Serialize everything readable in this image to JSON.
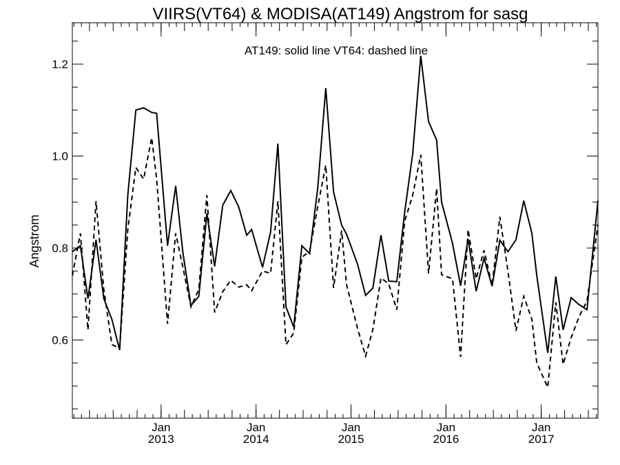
{
  "chart_data": {
    "type": "line",
    "title": "VIIRS(VT64) & MODISA(AT149)  Angstrom for sasg",
    "annotation": "AT149: solid line   VT64: dashed line",
    "ylabel": "Angstrom",
    "xlabel": "",
    "xlim": [
      "2012-01-26",
      "2017-08-07"
    ],
    "ylim": [
      0.43,
      1.29
    ],
    "y_ticks": [
      0.6,
      0.8,
      1.0,
      1.2
    ],
    "y_tick_labels": [
      "0.6",
      "0.8",
      "1.0",
      "1.2"
    ],
    "x_ticks": [
      {
        "date": "2013-01-01",
        "month": "Jan",
        "year": "2013"
      },
      {
        "date": "2014-01-01",
        "month": "Jan",
        "year": "2014"
      },
      {
        "date": "2015-01-01",
        "month": "Jan",
        "year": "2015"
      },
      {
        "date": "2016-01-01",
        "month": "Jan",
        "year": "2016"
      },
      {
        "date": "2017-01-01",
        "month": "Jan",
        "year": "2017"
      }
    ],
    "grid": false,
    "series": [
      {
        "name": "AT149",
        "style": "solid",
        "color": "#000000",
        "points": [
          [
            "2012-01-26",
            0.792
          ],
          [
            "2012-02-26",
            0.805
          ],
          [
            "2012-03-26",
            0.69
          ],
          [
            "2012-04-26",
            0.818
          ],
          [
            "2012-05-26",
            0.69
          ],
          [
            "2012-06-26",
            0.645
          ],
          [
            "2012-07-26",
            0.578
          ],
          [
            "2012-08-26",
            0.915
          ],
          [
            "2012-09-26",
            1.1
          ],
          [
            "2012-10-26",
            1.105
          ],
          [
            "2012-11-26",
            1.095
          ],
          [
            "2012-12-15",
            1.093
          ],
          [
            "2013-01-26",
            0.805
          ],
          [
            "2013-02-26",
            0.935
          ],
          [
            "2013-03-26",
            0.79
          ],
          [
            "2013-04-26",
            0.675
          ],
          [
            "2013-05-26",
            0.695
          ],
          [
            "2013-06-26",
            0.875
          ],
          [
            "2013-07-26",
            0.76
          ],
          [
            "2013-08-26",
            0.893
          ],
          [
            "2013-09-26",
            0.925
          ],
          [
            "2013-10-26",
            0.89
          ],
          [
            "2013-11-26",
            0.828
          ],
          [
            "2013-12-15",
            0.84
          ],
          [
            "2014-01-26",
            0.758
          ],
          [
            "2014-02-26",
            0.835
          ],
          [
            "2014-03-26",
            1.027
          ],
          [
            "2014-04-26",
            0.672
          ],
          [
            "2014-05-26",
            0.628
          ],
          [
            "2014-06-26",
            0.805
          ],
          [
            "2014-07-26",
            0.788
          ],
          [
            "2014-08-26",
            0.93
          ],
          [
            "2014-09-26",
            1.148
          ],
          [
            "2014-10-26",
            0.922
          ],
          [
            "2014-11-26",
            0.85
          ],
          [
            "2014-12-15",
            0.83
          ],
          [
            "2015-01-26",
            0.765
          ],
          [
            "2015-02-26",
            0.697
          ],
          [
            "2015-03-26",
            0.713
          ],
          [
            "2015-04-26",
            0.828
          ],
          [
            "2015-05-26",
            0.728
          ],
          [
            "2015-06-26",
            0.727
          ],
          [
            "2015-07-26",
            0.878
          ],
          [
            "2015-08-26",
            1.005
          ],
          [
            "2015-09-26",
            1.218
          ],
          [
            "2015-10-26",
            1.075
          ],
          [
            "2015-11-26",
            1.035
          ],
          [
            "2015-12-15",
            0.9
          ],
          [
            "2016-01-26",
            0.81
          ],
          [
            "2016-02-26",
            0.718
          ],
          [
            "2016-03-26",
            0.82
          ],
          [
            "2016-04-26",
            0.706
          ],
          [
            "2016-05-26",
            0.778
          ],
          [
            "2016-06-26",
            0.717
          ],
          [
            "2016-07-26",
            0.817
          ],
          [
            "2016-08-26",
            0.792
          ],
          [
            "2016-09-26",
            0.818
          ],
          [
            "2016-10-26",
            0.903
          ],
          [
            "2016-11-26",
            0.832
          ],
          [
            "2016-12-15",
            0.74
          ],
          [
            "2017-01-26",
            0.572
          ],
          [
            "2017-02-26",
            0.738
          ],
          [
            "2017-03-26",
            0.622
          ],
          [
            "2017-04-26",
            0.692
          ],
          [
            "2017-05-26",
            0.677
          ],
          [
            "2017-06-26",
            0.666
          ],
          [
            "2017-08-07",
            0.903
          ]
        ]
      },
      {
        "name": "VT64",
        "style": "dashed",
        "color": "#000000",
        "points": [
          [
            "2012-01-26",
            0.74
          ],
          [
            "2012-02-26",
            0.832
          ],
          [
            "2012-03-26",
            0.622
          ],
          [
            "2012-04-26",
            0.902
          ],
          [
            "2012-05-26",
            0.71
          ],
          [
            "2012-06-26",
            0.59
          ],
          [
            "2012-07-26",
            0.582
          ],
          [
            "2012-08-26",
            0.84
          ],
          [
            "2012-09-26",
            0.975
          ],
          [
            "2012-10-26",
            0.95
          ],
          [
            "2012-11-26",
            1.04
          ],
          [
            "2012-12-15",
            0.95
          ],
          [
            "2013-01-26",
            0.635
          ],
          [
            "2013-02-26",
            0.832
          ],
          [
            "2013-03-26",
            0.758
          ],
          [
            "2013-04-26",
            0.672
          ],
          [
            "2013-05-26",
            0.71
          ],
          [
            "2013-06-26",
            0.915
          ],
          [
            "2013-07-26",
            0.66
          ],
          [
            "2013-08-26",
            0.705
          ],
          [
            "2013-09-26",
            0.73
          ],
          [
            "2013-10-26",
            0.715
          ],
          [
            "2013-11-26",
            0.72
          ],
          [
            "2013-12-15",
            0.707
          ],
          [
            "2014-01-26",
            0.75
          ],
          [
            "2014-02-26",
            0.745
          ],
          [
            "2014-03-26",
            0.902
          ],
          [
            "2014-04-26",
            0.59
          ],
          [
            "2014-05-26",
            0.615
          ],
          [
            "2014-06-26",
            0.78
          ],
          [
            "2014-07-26",
            0.793
          ],
          [
            "2014-08-26",
            0.89
          ],
          [
            "2014-09-26",
            0.98
          ],
          [
            "2014-10-26",
            0.713
          ],
          [
            "2014-11-26",
            0.838
          ],
          [
            "2014-12-15",
            0.72
          ],
          [
            "2015-01-26",
            0.625
          ],
          [
            "2015-02-26",
            0.565
          ],
          [
            "2015-03-26",
            0.623
          ],
          [
            "2015-04-26",
            0.735
          ],
          [
            "2015-05-26",
            0.722
          ],
          [
            "2015-06-26",
            0.666
          ],
          [
            "2015-07-26",
            0.858
          ],
          [
            "2015-08-26",
            0.915
          ],
          [
            "2015-09-26",
            1.003
          ],
          [
            "2015-10-26",
            0.745
          ],
          [
            "2015-11-26",
            0.93
          ],
          [
            "2015-12-15",
            0.742
          ],
          [
            "2016-01-26",
            0.733
          ],
          [
            "2016-02-26",
            0.563
          ],
          [
            "2016-03-26",
            0.84
          ],
          [
            "2016-04-26",
            0.733
          ],
          [
            "2016-05-26",
            0.795
          ],
          [
            "2016-06-26",
            0.718
          ],
          [
            "2016-07-26",
            0.868
          ],
          [
            "2016-08-26",
            0.75
          ],
          [
            "2016-09-26",
            0.62
          ],
          [
            "2016-10-26",
            0.695
          ],
          [
            "2016-11-26",
            0.645
          ],
          [
            "2016-12-15",
            0.55
          ],
          [
            "2017-01-26",
            0.497
          ],
          [
            "2017-02-26",
            0.682
          ],
          [
            "2017-03-26",
            0.547
          ],
          [
            "2017-04-26",
            0.605
          ],
          [
            "2017-05-26",
            0.65
          ],
          [
            "2017-06-26",
            0.685
          ],
          [
            "2017-08-07",
            0.85
          ]
        ]
      }
    ]
  }
}
